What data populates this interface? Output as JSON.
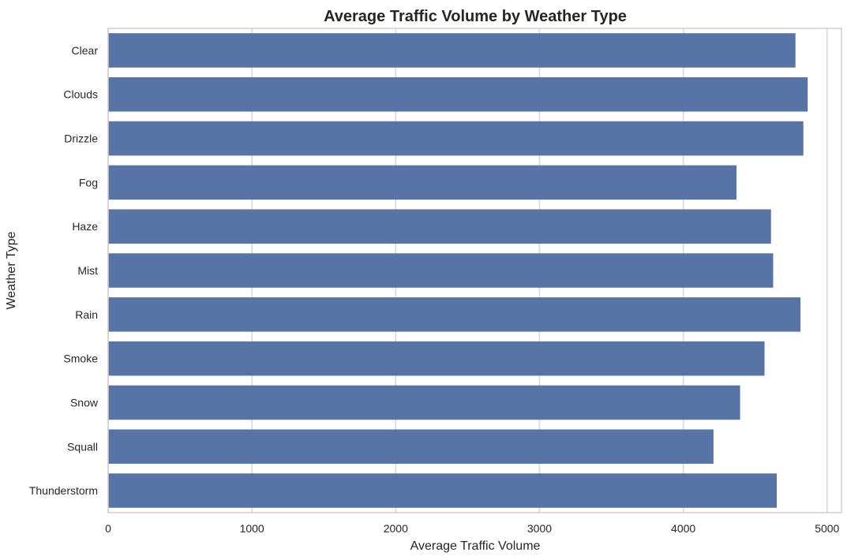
{
  "chart_data": {
    "type": "bar",
    "orientation": "horizontal",
    "title": "Average Traffic Volume by Weather Type",
    "xlabel": "Average Traffic Volume",
    "ylabel": "Weather Type",
    "categories": [
      "Clear",
      "Clouds",
      "Drizzle",
      "Fog",
      "Haze",
      "Mist",
      "Rain",
      "Smoke",
      "Snow",
      "Squall",
      "Thunderstorm"
    ],
    "values": [
      4780,
      4865,
      4835,
      4370,
      4610,
      4625,
      4815,
      4565,
      4395,
      4210,
      4650
    ],
    "xlim": [
      0,
      5100
    ],
    "xticks": [
      "0",
      "1000",
      "2000",
      "3000",
      "4000",
      "5000"
    ],
    "grid": true,
    "bar_color": "#5874a6"
  }
}
